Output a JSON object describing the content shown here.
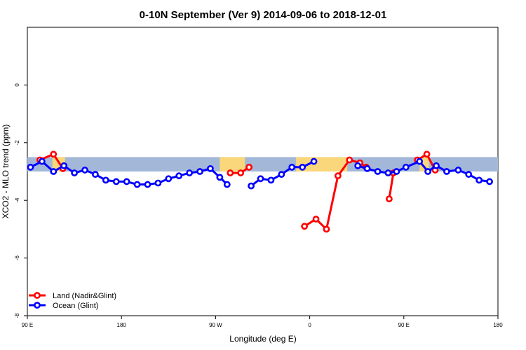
{
  "chart_data": {
    "type": "line",
    "title": "0-10N September (Ver 9)   2014-09-06 to 2018-12-01",
    "xlabel": "Longitude (deg E)",
    "ylabel": "XCO2 - MLO trend (ppm)",
    "xlim": [
      90,
      540
    ],
    "ylim": [
      -8,
      2
    ],
    "x_ticks": [
      {
        "value": 90,
        "label": "90 E"
      },
      {
        "value": 180,
        "label": "180"
      },
      {
        "value": 270,
        "label": "90 W"
      },
      {
        "value": 360,
        "label": "0"
      },
      {
        "value": 450,
        "label": "90 E"
      },
      {
        "value": 540,
        "label": "180"
      }
    ],
    "y_ticks": [
      {
        "value": 0,
        "label": "0"
      },
      {
        "value": -2,
        "label": "-2"
      },
      {
        "value": -4,
        "label": "-4"
      },
      {
        "value": -6,
        "label": "-6"
      },
      {
        "value": -8,
        "label": "-8"
      }
    ],
    "band": {
      "y_min": -3.0,
      "y_max": -2.5,
      "ocean_color": "#a3b8d8",
      "land_color": "#fad77a",
      "land_segments": [
        [
          114,
          126
        ],
        [
          274,
          298
        ],
        [
          347,
          396
        ],
        [
          465,
          474
        ]
      ]
    },
    "series": [
      {
        "name": "Land (Nadir&Glint)",
        "color": "#ff0000",
        "segments": [
          [
            {
              "x": 102,
              "y": -2.6
            },
            {
              "x": 115,
              "y": -2.4
            },
            {
              "x": 124,
              "y": -2.9
            }
          ],
          [
            {
              "x": 284,
              "y": -3.05
            },
            {
              "x": 294,
              "y": -3.05
            },
            {
              "x": 302,
              "y": -2.85
            }
          ],
          [
            {
              "x": 355,
              "y": -4.9
            },
            {
              "x": 366,
              "y": -4.65
            },
            {
              "x": 376,
              "y": -5.0
            },
            {
              "x": 387,
              "y": -3.15
            },
            {
              "x": 398,
              "y": -2.6
            },
            {
              "x": 408,
              "y": -2.7
            },
            {
              "x": 414,
              "y": -2.85
            }
          ],
          [
            {
              "x": 436,
              "y": -3.95
            },
            {
              "x": 440,
              "y": -3.05
            }
          ],
          [
            {
              "x": 463,
              "y": -2.6
            },
            {
              "x": 472,
              "y": -2.4
            },
            {
              "x": 480,
              "y": -2.95
            }
          ]
        ]
      },
      {
        "name": "Ocean (Glint)",
        "color": "#0000ff",
        "segments": [
          [
            {
              "x": 93,
              "y": -2.85
            },
            {
              "x": 104,
              "y": -2.65
            },
            {
              "x": 115,
              "y": -3.0
            },
            {
              "x": 125,
              "y": -2.8
            },
            {
              "x": 135,
              "y": -3.05
            },
            {
              "x": 145,
              "y": -2.95
            },
            {
              "x": 155,
              "y": -3.1
            },
            {
              "x": 165,
              "y": -3.3
            },
            {
              "x": 175,
              "y": -3.35
            },
            {
              "x": 185,
              "y": -3.35
            },
            {
              "x": 195,
              "y": -3.45
            },
            {
              "x": 205,
              "y": -3.45
            },
            {
              "x": 215,
              "y": -3.4
            },
            {
              "x": 225,
              "y": -3.25
            },
            {
              "x": 235,
              "y": -3.15
            },
            {
              "x": 245,
              "y": -3.05
            },
            {
              "x": 255,
              "y": -3.0
            },
            {
              "x": 265,
              "y": -2.9
            },
            {
              "x": 274,
              "y": -3.2
            },
            {
              "x": 281,
              "y": -3.45
            }
          ],
          [
            {
              "x": 304,
              "y": -3.5
            },
            {
              "x": 313,
              "y": -3.25
            },
            {
              "x": 323,
              "y": -3.3
            },
            {
              "x": 333,
              "y": -3.1
            },
            {
              "x": 343,
              "y": -2.85
            },
            {
              "x": 353,
              "y": -2.85
            },
            {
              "x": 364,
              "y": -2.65
            }
          ],
          [
            {
              "x": 406,
              "y": -2.8
            },
            {
              "x": 415,
              "y": -2.9
            },
            {
              "x": 425,
              "y": -3.0
            },
            {
              "x": 435,
              "y": -3.05
            },
            {
              "x": 443,
              "y": -3.0
            },
            {
              "x": 452,
              "y": -2.85
            },
            {
              "x": 465,
              "y": -2.65
            },
            {
              "x": 473,
              "y": -3.0
            },
            {
              "x": 481,
              "y": -2.8
            },
            {
              "x": 491,
              "y": -3.0
            },
            {
              "x": 502,
              "y": -2.95
            },
            {
              "x": 512,
              "y": -3.1
            },
            {
              "x": 522,
              "y": -3.3
            },
            {
              "x": 532,
              "y": -3.35
            }
          ]
        ]
      }
    ],
    "legend": {
      "position": "bottom-left",
      "entries": [
        {
          "label": "Land (Nadir&Glint)",
          "color": "#ff0000"
        },
        {
          "label": "Ocean (Glint)",
          "color": "#0000ff"
        }
      ]
    }
  }
}
